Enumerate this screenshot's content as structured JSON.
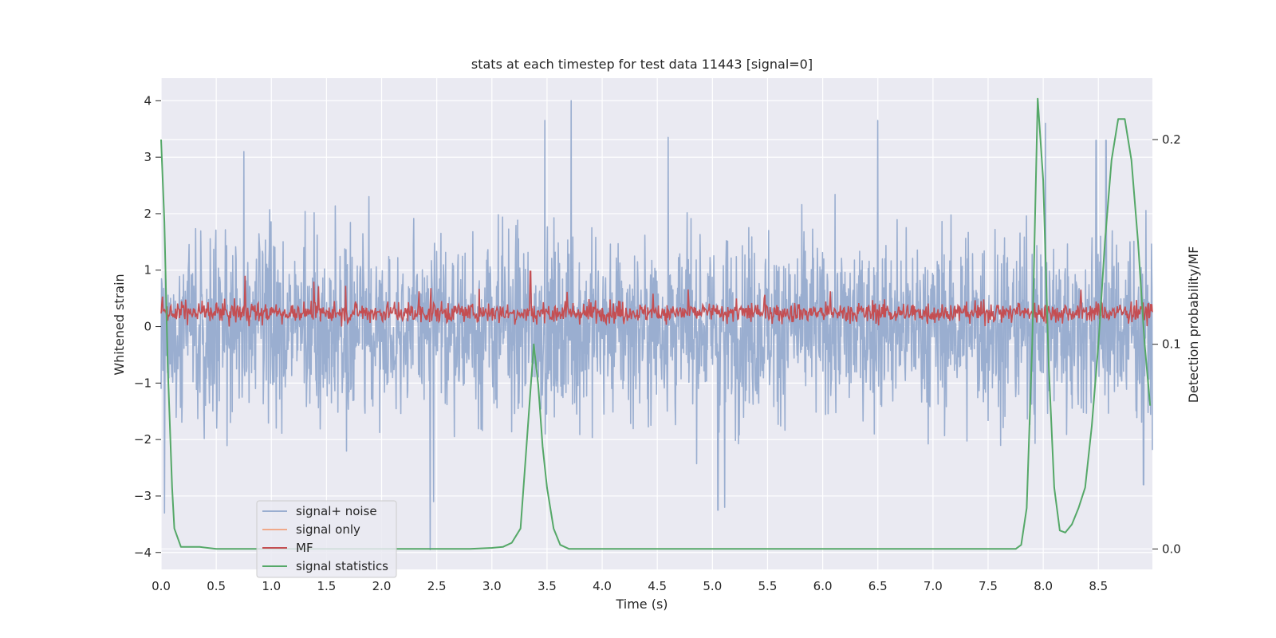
{
  "chart_data": {
    "type": "line",
    "title": "stats at each timestep for test data 11443 [signal=0]",
    "xlabel": "Time (s)",
    "ylabel": "Whitened strain",
    "y2label": "Detection probability/MF",
    "xlim": [
      0.0,
      8.99
    ],
    "ylim": [
      -4.3,
      4.4
    ],
    "y2lim": [
      -0.01,
      0.23
    ],
    "x_ticks": [
      "0.0",
      "0.5",
      "1.0",
      "1.5",
      "2.0",
      "2.5",
      "3.0",
      "3.5",
      "4.0",
      "4.5",
      "5.0",
      "5.5",
      "6.0",
      "6.5",
      "7.0",
      "7.5",
      "8.0",
      "8.5"
    ],
    "y_ticks": [
      "4",
      "3",
      "2",
      "1",
      "0",
      "−1",
      "−2",
      "−3",
      "−4"
    ],
    "y2_ticks": [
      "0.2",
      "0.1",
      "0.0"
    ],
    "grid": true,
    "legend_position": "lower-left",
    "noise_envelope": {
      "note_values": "approximate visual envelope of dense strain trace",
      "typical_amplitude": 2.0,
      "spikes": [
        {
          "x": 0.03,
          "y": 3.45
        },
        {
          "x": 0.03,
          "y": -3.3
        },
        {
          "x": 0.75,
          "y": 3.1
        },
        {
          "x": 2.44,
          "y": -3.95
        },
        {
          "x": 2.47,
          "y": -3.1
        },
        {
          "x": 3.48,
          "y": 3.65
        },
        {
          "x": 3.72,
          "y": 4.0
        },
        {
          "x": 4.6,
          "y": 3.35
        },
        {
          "x": 5.05,
          "y": -3.25
        },
        {
          "x": 5.11,
          "y": -3.2
        },
        {
          "x": 6.5,
          "y": 3.65
        },
        {
          "x": 8.02,
          "y": 3.6
        },
        {
          "x": 8.48,
          "y": 3.3
        },
        {
          "x": 8.57,
          "y": 3.3
        },
        {
          "x": 8.91,
          "y": -2.8
        }
      ]
    },
    "signal_statistics": {
      "x": [
        0.0,
        0.03,
        0.06,
        0.1,
        0.12,
        0.18,
        0.25,
        0.35,
        0.5,
        0.8,
        1.2,
        1.6,
        2.0,
        2.4,
        2.8,
        3.0,
        3.1,
        3.18,
        3.26,
        3.3,
        3.34,
        3.38,
        3.42,
        3.46,
        3.5,
        3.56,
        3.62,
        3.7,
        3.8,
        4.2,
        5.0,
        6.0,
        7.0,
        7.6,
        7.75,
        7.8,
        7.85,
        7.9,
        7.95,
        8.0,
        8.05,
        8.1,
        8.15,
        8.2,
        8.26,
        8.32,
        8.38,
        8.44,
        8.5,
        8.56,
        8.62,
        8.68,
        8.74,
        8.8,
        8.86,
        8.92,
        8.97
      ],
      "y": [
        0.2,
        0.16,
        0.09,
        0.03,
        0.01,
        0.001,
        0.001,
        0.001,
        0.0,
        0.0,
        0.0,
        0.0,
        0.0,
        0.0,
        0.0,
        0.0005,
        0.001,
        0.003,
        0.01,
        0.04,
        0.07,
        0.1,
        0.08,
        0.05,
        0.03,
        0.01,
        0.002,
        0.0,
        0.0,
        0.0,
        0.0,
        0.0,
        0.0,
        0.0,
        0.0,
        0.002,
        0.02,
        0.1,
        0.22,
        0.18,
        0.09,
        0.03,
        0.009,
        0.008,
        0.012,
        0.02,
        0.03,
        0.06,
        0.1,
        0.15,
        0.19,
        0.21,
        0.21,
        0.19,
        0.15,
        0.1,
        0.07
      ]
    },
    "series": [
      {
        "name": "signal+ noise",
        "color": "#9aaed0"
      },
      {
        "name": "signal only",
        "color": "#f0a98a"
      },
      {
        "name": "MF",
        "color": "#c44e52"
      },
      {
        "name": "signal statistics",
        "color": "#55a868"
      }
    ]
  }
}
